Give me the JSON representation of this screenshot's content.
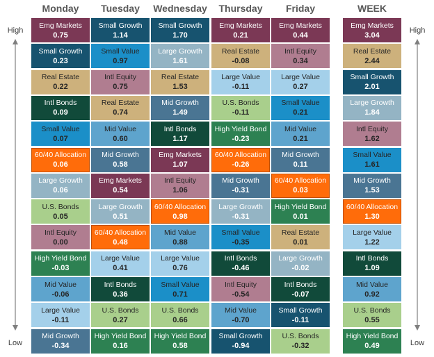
{
  "labels": {
    "high": "High",
    "low": "Low"
  },
  "colors": {
    "Emg Markets": {
      "bg": "#7b3855",
      "fg": "#ffffff"
    },
    "Small Growth": {
      "bg": "#17536f",
      "fg": "#ffffff"
    },
    "Real Estate": {
      "bg": "#cdb17c",
      "fg": "#262626"
    },
    "Intl Bonds": {
      "bg": "#114a3a",
      "fg": "#ffffff"
    },
    "Small Value": {
      "bg": "#1b8fc8",
      "fg": "#262626"
    },
    "60/40 Allocation": {
      "bg": "#ff6c0a",
      "fg": "#ffffff"
    },
    "Large Growth": {
      "bg": "#94b4c4",
      "fg": "#ffffff"
    },
    "U.S. Bonds": {
      "bg": "#a9cf8c",
      "fg": "#262626"
    },
    "Intl Equity": {
      "bg": "#b07d90",
      "fg": "#262626"
    },
    "High Yield Bond": {
      "bg": "#2d8152",
      "fg": "#ffffff"
    },
    "Mid Value": {
      "bg": "#5ea4cd",
      "fg": "#262626"
    },
    "Large Value": {
      "bg": "#a4d0ea",
      "fg": "#262626"
    },
    "Mid Growth": {
      "bg": "#4a7593",
      "fg": "#ffffff"
    }
  },
  "chart_data": {
    "type": "table",
    "columns": [
      {
        "header": "Monday",
        "cells": [
          {
            "name": "Emg Markets",
            "value": "0.75"
          },
          {
            "name": "Small Growth",
            "value": "0.23"
          },
          {
            "name": "Real Estate",
            "value": "0.22"
          },
          {
            "name": "Intl Bonds",
            "value": "0.09"
          },
          {
            "name": "Small Value",
            "value": "0.07"
          },
          {
            "name": "60/40 Allocation",
            "value": "0.06"
          },
          {
            "name": "Large Growth",
            "value": "0.06"
          },
          {
            "name": "U.S. Bonds",
            "value": "0.05"
          },
          {
            "name": "Intl Equity",
            "value": "0.00"
          },
          {
            "name": "High Yield Bond",
            "value": "-0.03"
          },
          {
            "name": "Mid Value",
            "value": "-0.06"
          },
          {
            "name": "Large Value",
            "value": "-0.11"
          },
          {
            "name": "Mid Growth",
            "value": "-0.34"
          }
        ]
      },
      {
        "header": "Tuesday",
        "cells": [
          {
            "name": "Small Growth",
            "value": "1.14"
          },
          {
            "name": "Small Value",
            "value": "0.97"
          },
          {
            "name": "Intl Equity",
            "value": "0.75"
          },
          {
            "name": "Real Estate",
            "value": "0.74"
          },
          {
            "name": "Mid Value",
            "value": "0.60"
          },
          {
            "name": "Mid Growth",
            "value": "0.58"
          },
          {
            "name": "Emg Markets",
            "value": "0.54"
          },
          {
            "name": "Large Growth",
            "value": "0.51"
          },
          {
            "name": "60/40 Allocation",
            "value": "0.48"
          },
          {
            "name": "Large Value",
            "value": "0.41"
          },
          {
            "name": "Intl Bonds",
            "value": "0.36"
          },
          {
            "name": "U.S. Bonds",
            "value": "0.27"
          },
          {
            "name": "High Yield Bond",
            "value": "0.16"
          }
        ]
      },
      {
        "header": "Wednesday",
        "cells": [
          {
            "name": "Small Growth",
            "value": "1.70"
          },
          {
            "name": "Large Growth",
            "value": "1.61"
          },
          {
            "name": "Real Estate",
            "value": "1.53"
          },
          {
            "name": "Mid Growth",
            "value": "1.49"
          },
          {
            "name": "Intl Bonds",
            "value": "1.17"
          },
          {
            "name": "Emg Markets",
            "value": "1.07"
          },
          {
            "name": "Intl Equity",
            "value": "1.06"
          },
          {
            "name": "60/40 Allocation",
            "value": "0.98"
          },
          {
            "name": "Mid Value",
            "value": "0.88"
          },
          {
            "name": "Large Value",
            "value": "0.76"
          },
          {
            "name": "Small Value",
            "value": "0.71"
          },
          {
            "name": "U.S. Bonds",
            "value": "0.66"
          },
          {
            "name": "High Yield Bond",
            "value": "0.58"
          }
        ]
      },
      {
        "header": "Thursday",
        "cells": [
          {
            "name": "Emg Markets",
            "value": "0.21"
          },
          {
            "name": "Real Estate",
            "value": "-0.08"
          },
          {
            "name": "Large Value",
            "value": "-0.11"
          },
          {
            "name": "U.S. Bonds",
            "value": "-0.11"
          },
          {
            "name": "High Yield Bond",
            "value": "-0.23"
          },
          {
            "name": "60/40 Allocation",
            "value": "-0.26"
          },
          {
            "name": "Mid Growth",
            "value": "-0.31"
          },
          {
            "name": "Large Growth",
            "value": "-0.31"
          },
          {
            "name": "Small Value",
            "value": "-0.35"
          },
          {
            "name": "Intl Bonds",
            "value": "-0.46"
          },
          {
            "name": "Intl Equity",
            "value": "-0.54"
          },
          {
            "name": "Mid Value",
            "value": "-0.70"
          },
          {
            "name": "Small Growth",
            "value": "-0.94"
          }
        ]
      },
      {
        "header": "Friday",
        "cells": [
          {
            "name": "Emg Markets",
            "value": "0.44"
          },
          {
            "name": "Intl Equity",
            "value": "0.34"
          },
          {
            "name": "Large Value",
            "value": "0.27"
          },
          {
            "name": "Small Value",
            "value": "0.21"
          },
          {
            "name": "Mid Value",
            "value": "0.21"
          },
          {
            "name": "Mid Growth",
            "value": "0.11"
          },
          {
            "name": "60/40 Allocation",
            "value": "0.03"
          },
          {
            "name": "High Yield Bond",
            "value": "0.01"
          },
          {
            "name": "Real Estate",
            "value": "0.01"
          },
          {
            "name": "Large Growth",
            "value": "-0.02"
          },
          {
            "name": "Intl Bonds",
            "value": "-0.07"
          },
          {
            "name": "Small Growth",
            "value": "-0.11"
          },
          {
            "name": "U.S. Bonds",
            "value": "-0.32"
          }
        ]
      },
      {
        "header": "WEEK",
        "cells": [
          {
            "name": "Emg Markets",
            "value": "3.04"
          },
          {
            "name": "Real Estate",
            "value": "2.44"
          },
          {
            "name": "Small Growth",
            "value": "2.01"
          },
          {
            "name": "Large Growth",
            "value": "1.84"
          },
          {
            "name": "Intl Equity",
            "value": "1.62"
          },
          {
            "name": "Small Value",
            "value": "1.61"
          },
          {
            "name": "Mid Growth",
            "value": "1.53"
          },
          {
            "name": "60/40 Allocation",
            "value": "1.30"
          },
          {
            "name": "Large Value",
            "value": "1.22"
          },
          {
            "name": "Intl Bonds",
            "value": "1.09"
          },
          {
            "name": "Mid Value",
            "value": "0.92"
          },
          {
            "name": "U.S. Bonds",
            "value": "0.55"
          },
          {
            "name": "High Yield Bond",
            "value": "0.49"
          }
        ]
      }
    ]
  }
}
